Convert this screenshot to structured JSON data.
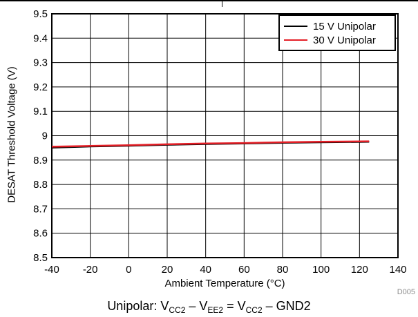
{
  "chart_data": {
    "type": "line",
    "xlabel": "Ambient Temperature (°C)",
    "ylabel": "DESAT Threshold Voltage (V)",
    "xlim": [
      -40,
      140
    ],
    "ylim": [
      8.5,
      9.5
    ],
    "xticks": [
      -40,
      -20,
      0,
      20,
      40,
      60,
      80,
      100,
      120,
      140
    ],
    "yticks": [
      8.5,
      8.6,
      8.7,
      8.8,
      8.9,
      9,
      9.1,
      9.2,
      9.3,
      9.4,
      9.5
    ],
    "grid": true,
    "legend_position": "top-right",
    "series": [
      {
        "name": "15 V Unipolar",
        "color": "#000000",
        "x": [
          -40,
          -20,
          0,
          20,
          40,
          60,
          80,
          100,
          125
        ],
        "y": [
          8.951,
          8.956,
          8.959,
          8.963,
          8.966,
          8.968,
          8.971,
          8.973,
          8.975
        ]
      },
      {
        "name": "30 V Unipolar",
        "color": "#e41e26",
        "x": [
          -40,
          -20,
          0,
          20,
          40,
          60,
          80,
          100,
          125
        ],
        "y": [
          8.955,
          8.958,
          8.961,
          8.965,
          8.968,
          8.97,
          8.973,
          8.975,
          8.977
        ]
      }
    ]
  },
  "caption": {
    "prefix": "Unipolar: V",
    "sub1": "CC2",
    "mid1": " – V",
    "sub2": "EE2",
    "mid2": " = V",
    "sub3": "CC2",
    "suffix": " – GND2"
  },
  "figure_code": "D005"
}
